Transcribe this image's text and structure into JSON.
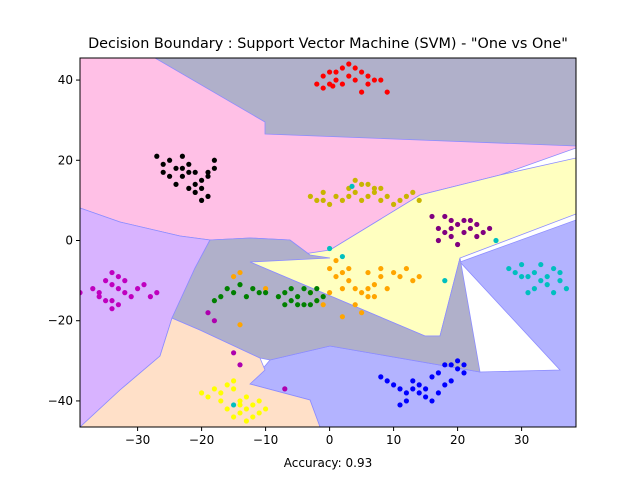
{
  "chart_data": {
    "type": "scatter",
    "title": "Decision Boundary : Support Vector Machine (SVM) - \"One vs One\"",
    "xlabel": "Accuracy: 0.93",
    "ylabel": "",
    "xlim": [
      -39,
      38.5
    ],
    "ylim": [
      -46.5,
      45.5
    ],
    "xticks": [
      -30,
      -20,
      -10,
      0,
      10,
      20,
      30
    ],
    "yticks": [
      -40,
      -20,
      0,
      20,
      40
    ],
    "xtick_labels": [
      "−30",
      "−20",
      "−10",
      "0",
      "10",
      "20",
      "30"
    ],
    "ytick_labels": [
      "−40",
      "−20",
      "0",
      "20",
      "40"
    ],
    "grid": false,
    "series": [
      {
        "color": "#ff0000",
        "points": [
          [
            -2,
            39
          ],
          [
            -1,
            41
          ],
          [
            0,
            42
          ],
          [
            1,
            40
          ],
          [
            2,
            43
          ],
          [
            3,
            41
          ],
          [
            4,
            40
          ],
          [
            5,
            42
          ],
          [
            6,
            39
          ],
          [
            7,
            40
          ],
          [
            -1,
            38
          ],
          [
            0,
            39
          ],
          [
            3,
            44
          ],
          [
            5,
            37
          ],
          [
            2,
            39
          ],
          [
            1,
            42
          ],
          [
            4,
            43
          ],
          [
            6,
            41
          ],
          [
            8,
            40
          ],
          [
            9,
            37
          ],
          [
            0.5,
            38.5
          ]
        ]
      },
      {
        "color": "#000000",
        "points": [
          [
            -27,
            21
          ],
          [
            -26,
            19
          ],
          [
            -25,
            20
          ],
          [
            -24,
            18
          ],
          [
            -23,
            21
          ],
          [
            -22,
            19
          ],
          [
            -21,
            17
          ],
          [
            -20,
            15
          ],
          [
            -19,
            17
          ],
          [
            -18,
            18
          ],
          [
            -24,
            14
          ],
          [
            -23,
            16
          ],
          [
            -22,
            13
          ],
          [
            -21,
            12
          ],
          [
            -20,
            10
          ],
          [
            -19,
            11
          ],
          [
            -25,
            16
          ],
          [
            -26,
            17
          ],
          [
            -23,
            18
          ],
          [
            -22,
            17
          ],
          [
            -21,
            14
          ],
          [
            -20,
            13
          ],
          [
            -18,
            20
          ],
          [
            -19,
            16
          ]
        ]
      },
      {
        "color": "#c8b400",
        "points": [
          [
            -3,
            11
          ],
          [
            -2,
            10
          ],
          [
            -1,
            12
          ],
          [
            0,
            9
          ],
          [
            1,
            11
          ],
          [
            2,
            10
          ],
          [
            3,
            13
          ],
          [
            4,
            15
          ],
          [
            5,
            14
          ],
          [
            6,
            11
          ],
          [
            7,
            12
          ],
          [
            8,
            10
          ],
          [
            9,
            11
          ],
          [
            10,
            9
          ],
          [
            11,
            10
          ],
          [
            12,
            11
          ],
          [
            13,
            12
          ],
          [
            14,
            10
          ],
          [
            5,
            10
          ],
          [
            6,
            14
          ],
          [
            7,
            13
          ],
          [
            4,
            12
          ],
          [
            8,
            13
          ],
          [
            -1,
            10
          ],
          [
            3,
            11
          ]
        ]
      },
      {
        "color": "#800080",
        "points": [
          [
            18,
            6
          ],
          [
            19,
            5
          ],
          [
            20,
            4
          ],
          [
            21,
            5
          ],
          [
            22,
            3
          ],
          [
            23,
            4
          ],
          [
            24,
            2
          ],
          [
            25,
            3
          ],
          [
            18,
            2
          ],
          [
            19,
            1
          ],
          [
            20,
            -1
          ],
          [
            17,
            3
          ],
          [
            16,
            6
          ],
          [
            22,
            5
          ],
          [
            21,
            2
          ],
          [
            23,
            1
          ],
          [
            17,
            0
          ],
          [
            19,
            3
          ]
        ]
      },
      {
        "color": "#00bfbf",
        "points": [
          [
            26,
            0
          ],
          [
            28,
            -7
          ],
          [
            30,
            -6
          ],
          [
            31,
            -9
          ],
          [
            32,
            -8
          ],
          [
            33,
            -10
          ],
          [
            34,
            -11
          ],
          [
            35,
            -7
          ],
          [
            36,
            -8
          ],
          [
            37,
            -12
          ],
          [
            32,
            -12
          ],
          [
            31,
            -13
          ],
          [
            33,
            -6
          ],
          [
            34,
            -9
          ],
          [
            35,
            -13
          ],
          [
            36,
            -10
          ],
          [
            30,
            -9
          ],
          [
            29,
            -8
          ],
          [
            3.5,
            13.5
          ],
          [
            0,
            -2
          ],
          [
            2,
            -4
          ],
          [
            -15,
            -41
          ],
          [
            18,
            -10
          ]
        ]
      },
      {
        "color": "#ffa500",
        "points": [
          [
            -15,
            -9
          ],
          [
            -14,
            -8
          ],
          [
            -10,
            -12
          ],
          [
            -14,
            -21
          ],
          [
            -2,
            -15
          ],
          [
            0,
            -13
          ],
          [
            1,
            -9
          ],
          [
            2,
            -8
          ],
          [
            3,
            -10
          ],
          [
            4,
            -12
          ],
          [
            5,
            -13
          ],
          [
            6,
            -14
          ],
          [
            7,
            -11
          ],
          [
            8,
            -9
          ],
          [
            9,
            -12
          ],
          [
            10,
            -8
          ],
          [
            11,
            -9
          ],
          [
            12,
            -7
          ],
          [
            13,
            -10
          ],
          [
            14,
            -9
          ],
          [
            3,
            -7
          ],
          [
            4,
            -16
          ],
          [
            5,
            -18
          ],
          [
            6,
            -12
          ],
          [
            7,
            -14
          ],
          [
            0,
            -7
          ],
          [
            1,
            -5
          ],
          [
            2,
            -12
          ],
          [
            -1,
            -16
          ],
          [
            -3,
            -13
          ],
          [
            6,
            -8
          ],
          [
            8,
            -7
          ],
          [
            2,
            -19
          ]
        ]
      },
      {
        "color": "#008000",
        "points": [
          [
            -18,
            -15
          ],
          [
            -17,
            -14
          ],
          [
            -16,
            -12
          ],
          [
            -15,
            -13
          ],
          [
            -14,
            -11
          ],
          [
            -13,
            -14
          ],
          [
            -12,
            -12
          ],
          [
            -10,
            -13
          ],
          [
            -8,
            -14
          ],
          [
            -7,
            -13
          ],
          [
            -6,
            -15
          ],
          [
            -5,
            -14
          ],
          [
            -4,
            -16
          ],
          [
            -3,
            -13
          ],
          [
            -2,
            -15
          ],
          [
            -1,
            -14
          ],
          [
            -6,
            -12
          ],
          [
            -5,
            -16
          ],
          [
            -4,
            -12
          ],
          [
            -7,
            -16
          ],
          [
            -3,
            -16
          ],
          [
            -2,
            -12
          ],
          [
            -11,
            -13
          ]
        ]
      },
      {
        "color": "#bf00bf",
        "points": [
          [
            -39,
            -13
          ],
          [
            -37,
            -12
          ],
          [
            -36,
            -13
          ],
          [
            -35,
            -10
          ],
          [
            -34,
            -11
          ],
          [
            -33,
            -12
          ],
          [
            -32,
            -13
          ],
          [
            -31,
            -14
          ],
          [
            -30,
            -12
          ],
          [
            -29,
            -11
          ],
          [
            -28,
            -14
          ],
          [
            -27,
            -13
          ],
          [
            -35,
            -15
          ],
          [
            -34,
            -17
          ],
          [
            -33,
            -16
          ],
          [
            -34,
            -8
          ],
          [
            -36,
            -14
          ],
          [
            -32,
            -10
          ],
          [
            -33,
            -9
          ],
          [
            -34,
            -15
          ]
        ]
      },
      {
        "color": "#0000ff",
        "points": [
          [
            8,
            -34
          ],
          [
            9,
            -35
          ],
          [
            10,
            -36
          ],
          [
            11,
            -37
          ],
          [
            12,
            -38
          ],
          [
            13,
            -35
          ],
          [
            14,
            -36
          ],
          [
            15,
            -37
          ],
          [
            16,
            -34
          ],
          [
            17,
            -33
          ],
          [
            18,
            -36
          ],
          [
            19,
            -35
          ],
          [
            20,
            -32
          ],
          [
            21,
            -33
          ],
          [
            19,
            -31
          ],
          [
            20,
            -30
          ],
          [
            17,
            -38
          ],
          [
            16,
            -40
          ],
          [
            15,
            -39
          ],
          [
            14,
            -38
          ],
          [
            12,
            -40
          ],
          [
            11,
            -41
          ],
          [
            18,
            -31
          ],
          [
            13,
            -37
          ],
          [
            21,
            -31
          ]
        ]
      },
      {
        "color": "#ffff00",
        "points": [
          [
            -20,
            -38
          ],
          [
            -19,
            -39
          ],
          [
            -18,
            -37
          ],
          [
            -17,
            -38
          ],
          [
            -16,
            -36
          ],
          [
            -15,
            -37
          ],
          [
            -14,
            -40
          ],
          [
            -13,
            -42
          ],
          [
            -12,
            -41
          ],
          [
            -11,
            -43
          ],
          [
            -10,
            -42
          ],
          [
            -15,
            -44
          ],
          [
            -14,
            -41
          ],
          [
            -13,
            -39
          ],
          [
            -12,
            -44
          ],
          [
            -16,
            -42
          ],
          [
            -15,
            -35
          ],
          [
            -17,
            -40
          ],
          [
            -14,
            -43
          ],
          [
            -11,
            -40
          ],
          [
            -13,
            -45
          ]
        ]
      },
      {
        "color": "#ae00ae",
        "points": [
          [
            -19,
            -18
          ],
          [
            -18,
            -20
          ],
          [
            -15,
            -28
          ],
          [
            -14,
            -31
          ],
          [
            -7,
            -37
          ]
        ]
      }
    ],
    "regions": [
      {
        "color": "#ffc0e6"
      },
      {
        "color": "#b0b0ca"
      },
      {
        "color": "#ffffc0"
      },
      {
        "color": "#b3b3ff"
      },
      {
        "color": "#d8b3ff"
      },
      {
        "color": "#ffe0c8"
      }
    ]
  }
}
